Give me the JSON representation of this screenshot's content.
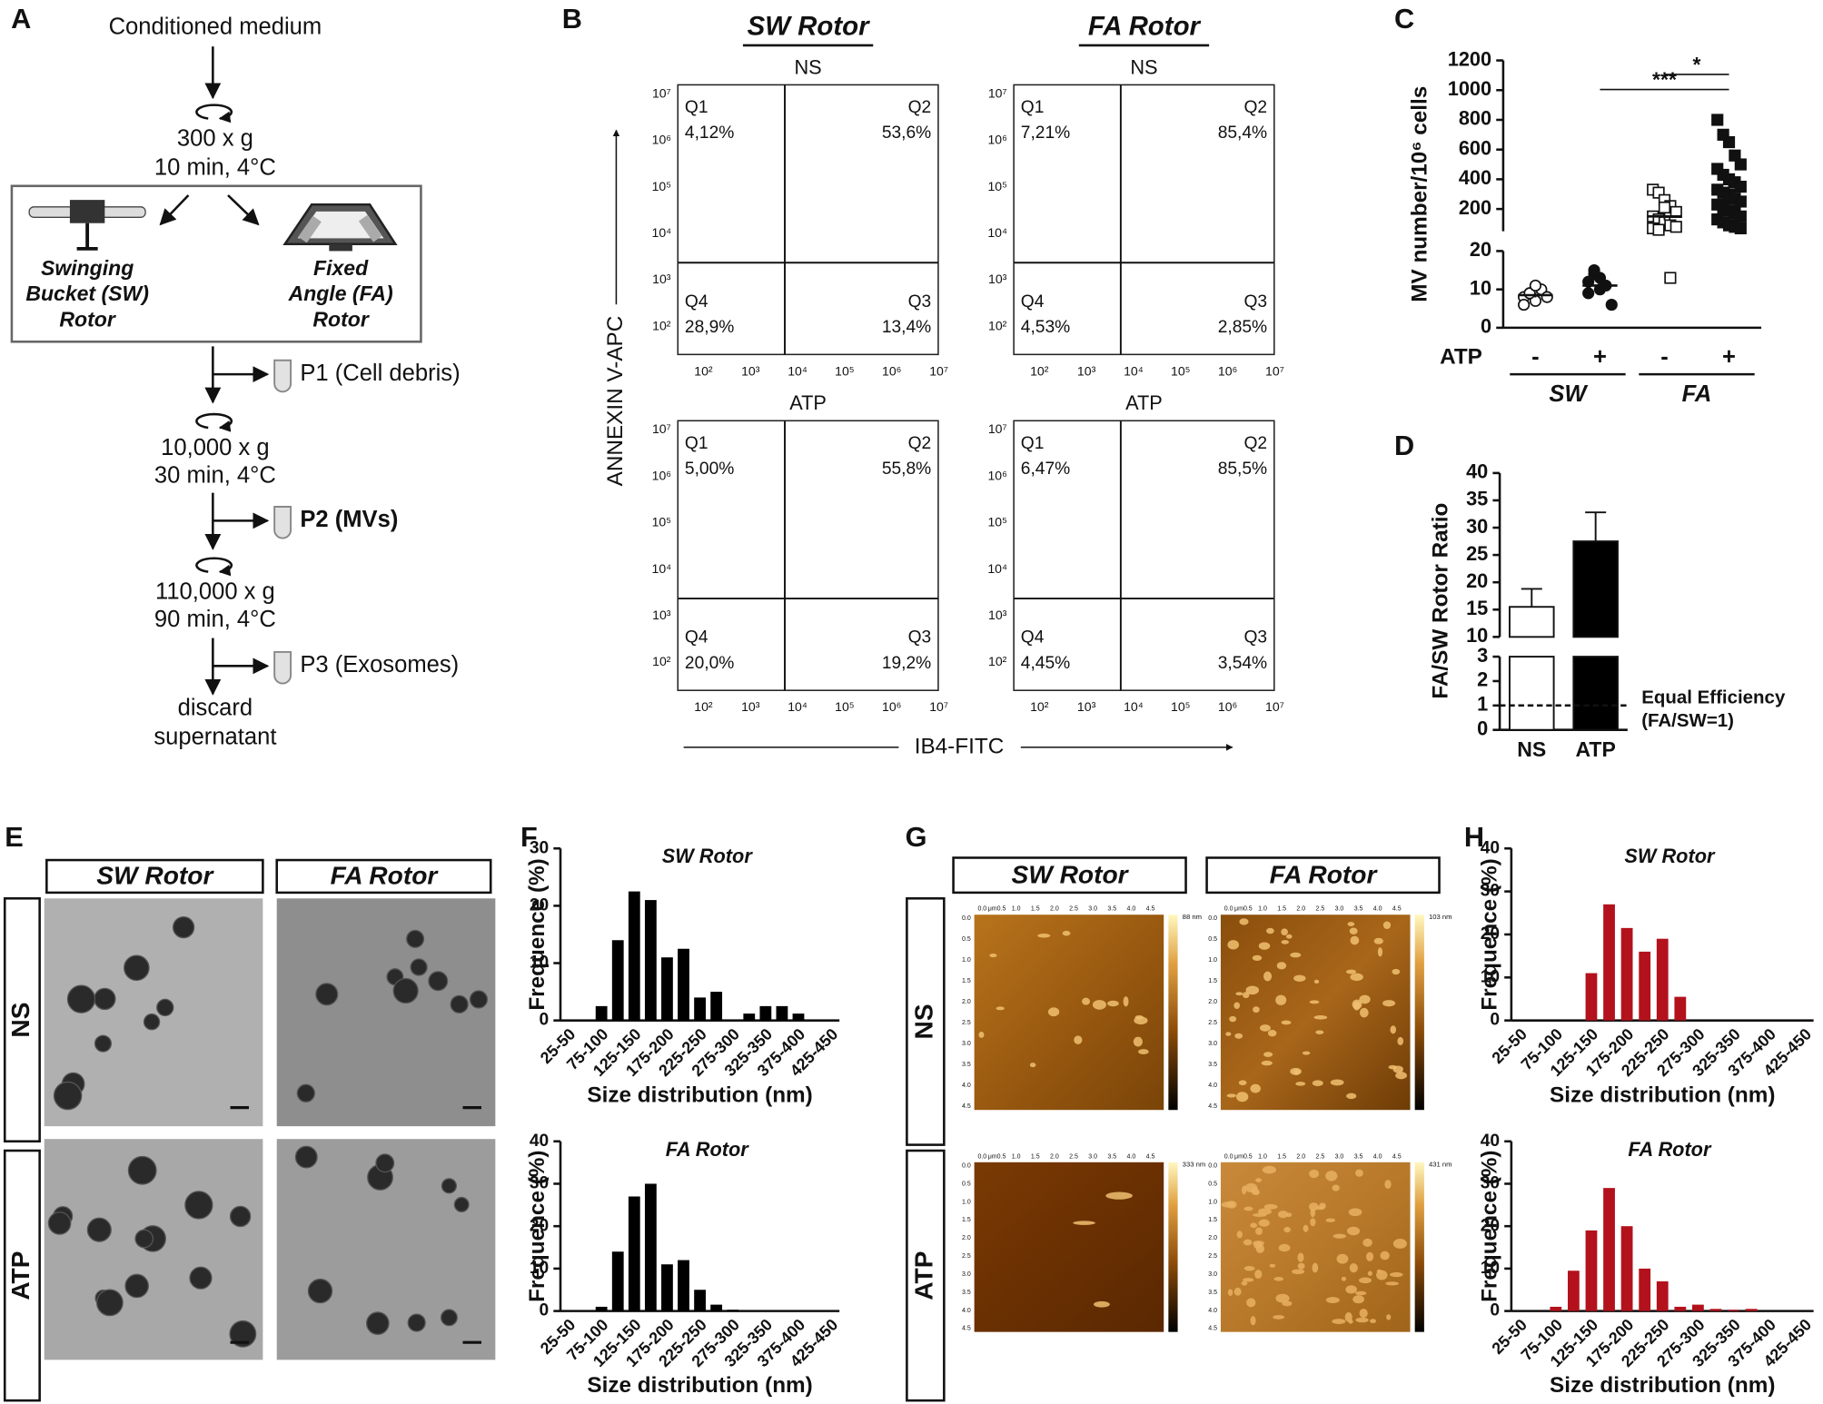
{
  "panel_labels": [
    "A",
    "B",
    "C",
    "D",
    "E",
    "F",
    "G",
    "H"
  ],
  "diagram": {
    "start": "Conditioned medium",
    "spin1": [
      "300 x g",
      "10 min, 4°C"
    ],
    "rotors": [
      [
        "Swinging",
        "Bucket (SW)",
        "Rotor"
      ],
      [
        "Fixed",
        "Angle (FA)",
        "Rotor"
      ]
    ],
    "fractions": [
      "P1 (Cell debris)",
      "P2 (MVs)",
      "P3 (Exosomes)"
    ],
    "spin2": [
      "10,000 x g",
      "30 min, 4°C"
    ],
    "spin3": [
      "110,000 x g",
      "90 min, 4°C"
    ],
    "end": [
      "discard",
      "supernatant"
    ]
  },
  "flow_cytometry": {
    "columns": [
      "SW Rotor",
      "FA Rotor"
    ],
    "rows": [
      "NS",
      "ATP"
    ],
    "y_label": "ANNEXIN V-APC",
    "x_label": "IB4-FITC",
    "ticks": [
      "10²",
      "10³",
      "10⁴",
      "10⁵",
      "10⁶",
      "10⁷"
    ],
    "quadrants": [
      "Q1",
      "Q2",
      "Q3",
      "Q4"
    ],
    "plots": [
      [
        [
          "4,12%",
          "53,6%",
          "13,4%",
          "28,9%"
        ],
        [
          "7,21%",
          "85,4%",
          "2,85%",
          "4,53%"
        ]
      ],
      [
        [
          "5,00%",
          "55,8%",
          "19,2%",
          "20,0%"
        ],
        [
          "6,47%",
          "85,5%",
          "3,54%",
          "4,45%"
        ]
      ]
    ]
  },
  "chart_data": [
    {
      "type": "dot",
      "ylabel": "MV number/10⁶ cells",
      "xlabel": "ATP",
      "categories": [
        "-",
        "+",
        "-",
        "+"
      ],
      "groups": [
        "SW",
        "FA"
      ],
      "markers": [
        "open-circle",
        "filled-circle",
        "open-square",
        "filled-square"
      ],
      "values": [
        [
          8,
          9,
          7,
          10,
          8,
          6,
          9,
          11
        ],
        [
          12,
          14,
          10,
          11,
          6,
          9,
          15,
          13
        ],
        [
          330,
          310,
          260,
          220,
          180,
          150,
          130,
          110,
          90,
          80,
          70,
          60,
          210,
          13
        ],
        [
          800,
          700,
          650,
          560,
          500,
          470,
          430,
          400,
          380,
          350,
          330,
          310,
          290,
          270,
          250,
          230,
          210,
          190,
          170,
          150,
          130,
          110,
          90,
          80,
          70
        ]
      ],
      "means": [
        8.5,
        11,
        150,
        330
      ],
      "sem": [
        0.6,
        1.2,
        25,
        40
      ],
      "segments": [
        {
          "ylim": [
            0,
            20
          ],
          "yticks": [
            0,
            10,
            20
          ]
        },
        {
          "ylim": [
            50,
            1200
          ],
          "yticks": [
            200,
            400,
            600,
            800,
            1000,
            1200
          ]
        }
      ],
      "significance": [
        "***",
        "*"
      ]
    },
    {
      "type": "bar",
      "ylabel": "FA/SW Rotor Ratio",
      "categories": [
        "NS",
        "ATP"
      ],
      "values": [
        15.5,
        27.5
      ],
      "errors": [
        3.3,
        5.3
      ],
      "colors": [
        "#ffffff",
        "#000000"
      ],
      "segments": [
        {
          "ylim": [
            0,
            3
          ],
          "yticks": [
            0,
            1,
            2,
            3
          ]
        },
        {
          "ylim": [
            10,
            40
          ],
          "yticks": [
            10,
            15,
            20,
            25,
            30,
            35,
            40
          ]
        }
      ],
      "reference": {
        "value": 1,
        "label": [
          "Equal Efficiency",
          "(FA/SW=1)"
        ]
      }
    },
    {
      "type": "bar",
      "title": "SW Rotor",
      "xlabel": "Size distribution (nm)",
      "ylabel": "Frequence (%)",
      "color": "#000000",
      "categories": [
        "25-50",
        null,
        "75-100",
        null,
        "125-150",
        null,
        "175-200",
        null,
        "225-250",
        null,
        "275-300",
        null,
        "325-350",
        null,
        "375-400",
        null,
        "425-450"
      ],
      "values": [
        0,
        0,
        2.5,
        14,
        22.5,
        21,
        11,
        12.5,
        4,
        5,
        0,
        1.2,
        2.5,
        2.5,
        1.2,
        0,
        0
      ],
      "ylim": [
        0,
        30
      ],
      "yticks": [
        0,
        10,
        20,
        30
      ]
    },
    {
      "type": "bar",
      "title": "FA Rotor",
      "xlabel": "Size distribution (nm)",
      "ylabel": "Frequence (%)",
      "color": "#000000",
      "categories": [
        "25-50",
        null,
        "75-100",
        null,
        "125-150",
        null,
        "175-200",
        null,
        "225-250",
        null,
        "275-300",
        null,
        "325-350",
        null,
        "375-400",
        null,
        "425-450"
      ],
      "values": [
        0,
        0,
        1,
        14,
        27,
        30,
        11,
        12,
        5,
        1.5,
        0.3,
        0,
        0,
        0,
        0,
        0,
        0
      ],
      "ylim": [
        0,
        40
      ],
      "yticks": [
        0,
        10,
        20,
        30,
        40
      ]
    },
    {
      "type": "bar",
      "title": "SW Rotor",
      "xlabel": "Size distribution (nm)",
      "ylabel": "Frequence (%)",
      "color": "#b3121c",
      "categories": [
        "25-50",
        null,
        "75-100",
        null,
        "125-150",
        null,
        "175-200",
        null,
        "225-250",
        null,
        "275-300",
        null,
        "325-350",
        null,
        "375-400",
        null,
        "425-450"
      ],
      "values": [
        0,
        0,
        0,
        0,
        11,
        27,
        21.5,
        16,
        19,
        5.5,
        0,
        0,
        0,
        0,
        0,
        0,
        0
      ],
      "ylim": [
        0,
        40
      ],
      "yticks": [
        0,
        10,
        20,
        30,
        40
      ]
    },
    {
      "type": "bar",
      "title": "FA Rotor",
      "xlabel": "Size distribution (nm)",
      "ylabel": "Frequence (%)",
      "color": "#b3121c",
      "categories": [
        "25-50",
        null,
        "75-100",
        null,
        "125-150",
        null,
        "175-200",
        null,
        "225-250",
        null,
        "275-300",
        null,
        "325-350",
        null,
        "375-400",
        null,
        "425-450"
      ],
      "values": [
        0,
        0,
        1,
        9.5,
        19,
        29,
        20,
        10,
        7,
        1,
        1.5,
        0.5,
        0.3,
        0.5,
        0,
        0,
        0
      ],
      "ylim": [
        0,
        40
      ],
      "yticks": [
        0,
        10,
        20,
        30,
        40
      ]
    }
  ],
  "micrographs": {
    "columns": [
      "SW Rotor",
      "FA Rotor"
    ],
    "rows": [
      "NS",
      "ATP"
    ]
  },
  "afm": {
    "columns": [
      "SW Rotor",
      "FA Rotor"
    ],
    "rows": [
      "NS",
      "ATP"
    ],
    "x_ticks": [
      "0.0",
      "μm0.5",
      "1.0",
      "1.5",
      "2.0",
      "2.5",
      "3.0",
      "3.5",
      "4.0",
      "4.5"
    ],
    "y_ticks": [
      "0.0",
      "0.5",
      "1.0",
      "1.5",
      "2.0",
      "2.5",
      "3.0",
      "3.5",
      "4.0",
      "4.5"
    ],
    "scale_max": [
      [
        "88 nm",
        "103 nm"
      ],
      [
        "333 nm",
        "431 nm"
      ]
    ]
  }
}
